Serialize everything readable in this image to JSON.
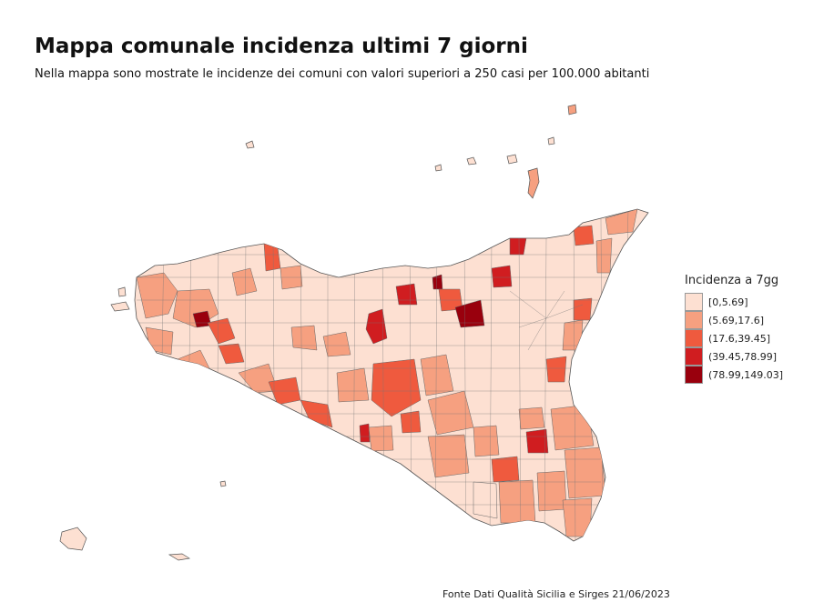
{
  "title": "Mappa comunale incidenza ultimi 7 giorni",
  "subtitle": "Nella mappa sono mostrate le incidenze dei comuni con valori superiori a 250 casi per 100.000 abitanti",
  "legend": {
    "title": "Incidenza a 7gg",
    "items": [
      {
        "label": "[0,5.69]",
        "color": "#fde0d2"
      },
      {
        "label": "(5.69,17.6]",
        "color": "#f6a080"
      },
      {
        "label": "(17.6,39.45]",
        "color": "#ef5a3e"
      },
      {
        "label": "(39.45,78.99]",
        "color": "#d01d20"
      },
      {
        "label": "(78.99,149.03]",
        "color": "#99000d"
      }
    ]
  },
  "map": {
    "region": "Sicilia",
    "base_color": "#fde0d2",
    "border_color": "#555555"
  },
  "source": "Fonte Dati Qualità Sicilia e Sirges 21/06/2023"
}
